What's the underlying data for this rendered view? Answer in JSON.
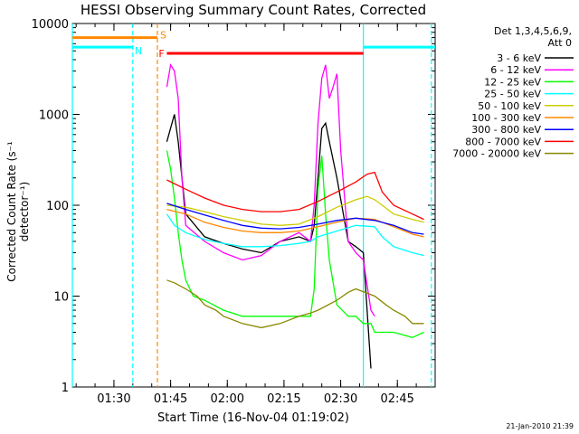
{
  "chart_data": {
    "type": "line",
    "title": "HESSI Observing Summary Count Rates, Corrected",
    "xlabel": "Start Time (16-Nov-04 01:19:02)",
    "ylabel": "Corrected Count Rate (s⁻¹ detector⁻¹)",
    "yscale": "log",
    "ylim": [
      1,
      10000
    ],
    "xlim_minutes_from_0119": [
      0,
      96
    ],
    "y_ticks": [
      {
        "value": 1,
        "label": "1"
      },
      {
        "value": 10,
        "label": "10"
      },
      {
        "value": 100,
        "label": "100"
      },
      {
        "value": 1000,
        "label": "1000"
      },
      {
        "value": 10000,
        "label": "10000"
      }
    ],
    "x_ticks": [
      {
        "minute": 11,
        "label": "01:30"
      },
      {
        "minute": 26,
        "label": "01:45"
      },
      {
        "minute": 41,
        "label": "02:00"
      },
      {
        "minute": 56,
        "label": "02:15"
      },
      {
        "minute": 71,
        "label": "02:30"
      },
      {
        "minute": 86,
        "label": "02:45"
      }
    ],
    "legend_header": [
      "Det 1,3,4,5,6,9,",
      "Att 0"
    ],
    "series": [
      {
        "name": "3 - 6 keV",
        "color": "#000000",
        "x": [
          25,
          27,
          28,
          30,
          35,
          40,
          45,
          50,
          55,
          60,
          63,
          64,
          65,
          66,
          67,
          68,
          70,
          73,
          75,
          77,
          79
        ],
        "y": [
          500,
          1000,
          500,
          80,
          45,
          38,
          33,
          30,
          40,
          45,
          40,
          60,
          200,
          700,
          800,
          500,
          200,
          40,
          35,
          30,
          1.6
        ]
      },
      {
        "name": "6 - 12 keV",
        "color": "#ff00ff",
        "x": [
          25,
          26,
          27,
          28,
          29,
          30,
          35,
          40,
          45,
          50,
          55,
          60,
          63,
          64,
          65,
          66,
          67,
          68,
          69,
          70,
          71,
          73,
          75,
          77,
          79,
          80
        ],
        "y": [
          2000,
          3500,
          3000,
          1500,
          200,
          60,
          40,
          30,
          25,
          28,
          40,
          50,
          40,
          100,
          800,
          2500,
          3500,
          1500,
          2000,
          2800,
          400,
          40,
          30,
          25,
          7,
          6
        ]
      },
      {
        "name": "12 - 25 keV",
        "color": "#00ff00",
        "x": [
          25,
          26,
          27,
          28,
          29,
          30,
          32,
          35,
          40,
          45,
          50,
          55,
          60,
          63,
          64,
          65,
          66,
          67,
          68,
          70,
          73,
          75,
          77,
          79,
          80,
          82,
          85,
          90,
          93
        ],
        "y": [
          400,
          250,
          120,
          50,
          25,
          15,
          10,
          9,
          7,
          6,
          6,
          6,
          6,
          6,
          12,
          150,
          350,
          80,
          25,
          8,
          6,
          6,
          5,
          5,
          4,
          4,
          4,
          3.5,
          4
        ]
      },
      {
        "name": "25 - 50 keV",
        "color": "#00ffff",
        "x": [
          25,
          27,
          30,
          35,
          40,
          45,
          50,
          55,
          60,
          63,
          65,
          70,
          75,
          80,
          82,
          85,
          90,
          93
        ],
        "y": [
          80,
          60,
          50,
          42,
          38,
          35,
          35,
          36,
          38,
          40,
          45,
          52,
          60,
          58,
          45,
          35,
          30,
          28
        ]
      },
      {
        "name": "50 - 100 keV",
        "color": "#cccc00",
        "x": [
          25,
          30,
          35,
          40,
          45,
          50,
          55,
          60,
          65,
          70,
          75,
          78,
          80,
          82,
          85,
          90,
          93
        ],
        "y": [
          100,
          95,
          85,
          75,
          68,
          62,
          60,
          62,
          75,
          95,
          115,
          125,
          115,
          100,
          80,
          70,
          65
        ]
      },
      {
        "name": "100 - 300 keV",
        "color": "#ff8800",
        "x": [
          25,
          30,
          35,
          40,
          45,
          50,
          55,
          60,
          65,
          70,
          75,
          80,
          85,
          90,
          93
        ],
        "y": [
          90,
          80,
          65,
          57,
          52,
          50,
          50,
          52,
          58,
          65,
          72,
          70,
          58,
          48,
          45
        ]
      },
      {
        "name": "300 - 800 keV",
        "color": "#0000ff",
        "x": [
          25,
          30,
          35,
          40,
          45,
          50,
          55,
          60,
          65,
          70,
          75,
          80,
          85,
          90,
          93
        ],
        "y": [
          105,
          90,
          78,
          68,
          60,
          56,
          55,
          57,
          62,
          68,
          72,
          68,
          60,
          50,
          48
        ]
      },
      {
        "name": "800 - 7000 keV",
        "color": "#ff0000",
        "x": [
          25,
          30,
          35,
          40,
          45,
          50,
          55,
          60,
          65,
          70,
          75,
          78,
          80,
          82,
          85,
          90,
          93
        ],
        "y": [
          190,
          150,
          120,
          100,
          90,
          85,
          85,
          90,
          110,
          140,
          180,
          220,
          230,
          140,
          100,
          80,
          70
        ]
      },
      {
        "name": "7000 - 20000 keV",
        "color": "#888800",
        "x": [
          25,
          27,
          30,
          33,
          35,
          38,
          40,
          45,
          50,
          55,
          60,
          63,
          65,
          70,
          73,
          75,
          80,
          83,
          85,
          88,
          90,
          93
        ],
        "y": [
          15,
          14,
          12,
          10,
          8,
          7,
          6,
          5,
          4.5,
          5,
          6,
          6.5,
          7,
          9,
          11,
          12,
          10,
          8,
          7,
          6,
          5,
          5
        ]
      }
    ],
    "annotations": [
      {
        "label": "S",
        "kind": "orange-bar",
        "color": "#ff8800",
        "x_start": 0,
        "x_end": 22.5,
        "y": 7000
      },
      {
        "label": "N",
        "kind": "cyan-bar",
        "color": "#00ffff",
        "segments": [
          [
            0,
            16
          ],
          [
            77,
            96
          ]
        ],
        "y": 5500
      },
      {
        "label": "F",
        "kind": "red-bar",
        "color": "#ff0000",
        "x_start": 25,
        "x_end": 77,
        "y": 4700
      }
    ],
    "vlines": [
      {
        "minute": 0,
        "color": "#00ffff",
        "style": "solid"
      },
      {
        "minute": 16,
        "color": "#00ffff",
        "style": "dashed"
      },
      {
        "minute": 22.5,
        "color": "#ff8800",
        "style": "dashed"
      },
      {
        "minute": 77,
        "color": "#00ffff",
        "style": "solid"
      },
      {
        "minute": 95,
        "color": "#00ffff",
        "style": "dashed"
      }
    ],
    "legend_position": "right"
  },
  "stamp": "21-Jan-2010 21:39"
}
